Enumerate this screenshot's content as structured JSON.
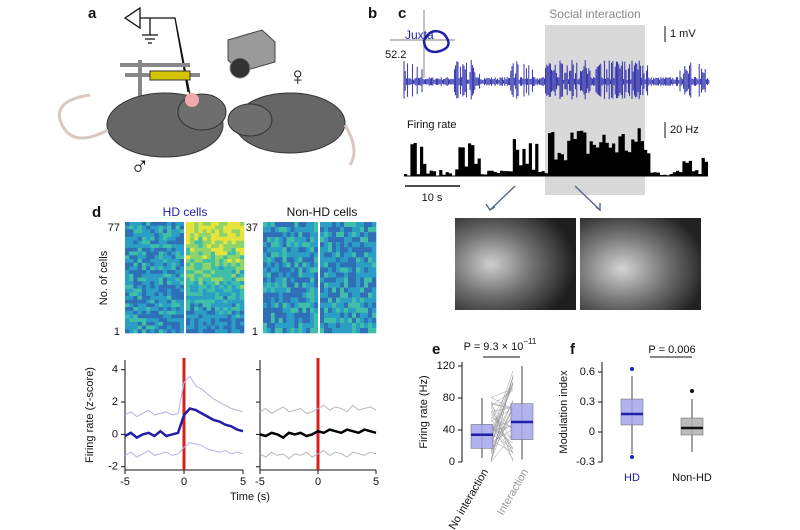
{
  "panel_a": {
    "label": "a",
    "male": "♂",
    "female": "♀"
  },
  "panel_b": {
    "label": "b",
    "angle": "52.2"
  },
  "panel_c": {
    "label": "c",
    "trace_label": "Juxta",
    "shaded_label": "Social interaction",
    "voltage_scale": "1 mV",
    "rate_label": "Firing rate",
    "rate_scale": "20 Hz",
    "time_scale": "10 s"
  },
  "panel_d": {
    "label": "d",
    "hd_title": "HD cells",
    "nonhd_title": "Non-HD cells",
    "hd_max": "77",
    "hd_min": "1",
    "nonhd_max": "37",
    "nonhd_min": "1",
    "heatmap_ylabel": "No. of cells",
    "x_label": "Time (s)"
  },
  "panel_e": {
    "label": "e",
    "p_prefix": "P = 9.3 × 10",
    "p_exponent": "−11"
  },
  "panel_f": {
    "label": "f",
    "p_value": "P = 0.006"
  },
  "chart_data": [
    {
      "type": "line",
      "y_label": "Firing rate (z-score)",
      "x": [
        -5,
        -4.5,
        -4,
        -3.5,
        -3,
        -2.5,
        -2,
        -1.5,
        -1,
        -0.5,
        0,
        0.5,
        1,
        1.5,
        2,
        2.5,
        3,
        3.5,
        4,
        4.5,
        5
      ],
      "xlim": [
        -5,
        5
      ],
      "xticks": [
        -5,
        0,
        5
      ],
      "ylim": [
        -2.2,
        4.6
      ],
      "yticks": [
        -2,
        0,
        2,
        4
      ],
      "marker_color": "#d62020",
      "series": [
        {
          "color": "#b3b3e6",
          "values": [
            1.2,
            1.4,
            1.1,
            1.3,
            1.5,
            1.2,
            1.3,
            1.4,
            1.2,
            1.3,
            3.2,
            3.6,
            3.0,
            2.8,
            2.5,
            2.2,
            2.0,
            1.8,
            1.6,
            1.5,
            1.4
          ]
        },
        {
          "color": "#b3b3e6",
          "values": [
            -1.3,
            -1.1,
            -1.4,
            -1.2,
            -1.0,
            -1.3,
            -1.2,
            -1.1,
            -1.3,
            -1.2,
            -0.8,
            -0.5,
            -0.6,
            -0.7,
            -0.9,
            -1.0,
            -1.1,
            -1.0,
            -1.2,
            -1.1,
            -1.2
          ]
        },
        {
          "color": "#1f1fa8",
          "values": [
            -0.1,
            0.1,
            -0.2,
            0,
            0.1,
            -0.1,
            0.2,
            -0.1,
            0,
            0.1,
            1.2,
            1.6,
            1.5,
            1.3,
            1.1,
            0.9,
            0.8,
            0.6,
            0.5,
            0.3,
            0.2
          ]
        }
      ]
    },
    {
      "type": "line",
      "x": [
        -5,
        -4.5,
        -4,
        -3.5,
        -3,
        -2.5,
        -2,
        -1.5,
        -1,
        -0.5,
        0,
        0.5,
        1,
        1.5,
        2,
        2.5,
        3,
        3.5,
        4,
        4.5,
        5
      ],
      "xlim": [
        -5,
        5
      ],
      "xticks": [
        -5,
        0,
        5
      ],
      "ylim": [
        -2.2,
        4.6
      ],
      "yticks": [
        -2,
        0,
        2,
        4
      ],
      "marker_color": "#d62020",
      "series": [
        {
          "color": "#b8b8b8",
          "values": [
            1.4,
            1.6,
            1.3,
            1.5,
            1.7,
            1.4,
            1.5,
            1.6,
            1.3,
            1.4,
            1.6,
            1.8,
            1.5,
            1.7,
            1.6,
            1.4,
            1.8,
            1.5,
            1.6,
            1.7,
            1.5
          ]
        },
        {
          "color": "#b8b8b8",
          "values": [
            -1.2,
            -1.4,
            -1.1,
            -1.3,
            -1.2,
            -1.5,
            -1.2,
            -1.3,
            -1.1,
            -1.4,
            -1.2,
            -1.0,
            -1.3,
            -1.1,
            -1.2,
            -1.4,
            -1.1,
            -1.2,
            -1.3,
            -1.1,
            -1.2
          ]
        },
        {
          "color": "#000000",
          "values": [
            0,
            -0.1,
            0.1,
            0,
            -0.2,
            0.1,
            0,
            0.1,
            -0.1,
            0,
            0.2,
            0.1,
            0.3,
            0.2,
            0.1,
            0.3,
            0.2,
            0.1,
            0.3,
            0.2,
            0.1
          ]
        }
      ]
    },
    {
      "type": "box",
      "y_label": "Firing rate (Hz)",
      "categories": [
        "No interaction",
        "Interaction"
      ],
      "category_colors": [
        "#111111",
        "#999999"
      ],
      "ylim": [
        0,
        125
      ],
      "yticks": [
        0,
        40,
        80,
        120
      ],
      "boxes": [
        {
          "min": 5,
          "q1": 17,
          "median": 34,
          "q3": 47,
          "max": 80,
          "color": "#a5a5ec",
          "median_color": "#1f1fa8"
        },
        {
          "min": 3,
          "q1": 28,
          "median": 50,
          "q3": 73,
          "max": 120,
          "color": "#a5a5ec",
          "median_color": "#1f1fa8"
        }
      ]
    },
    {
      "type": "box",
      "y_label": "Modulation index",
      "categories": [
        "HD",
        "Non-HD"
      ],
      "category_colors": [
        "#1f1fa8",
        "#111111"
      ],
      "ylim": [
        -0.3,
        0.7
      ],
      "yticks": [
        -0.3,
        0,
        0.3,
        0.6
      ],
      "boxes": [
        {
          "min": -0.22,
          "q1": 0.07,
          "median": 0.18,
          "q3": 0.33,
          "max": 0.56,
          "outliers": [
            0.63,
            -0.25
          ],
          "color": "#a5a5ec",
          "median_color": "#1f1fa8"
        },
        {
          "min": -0.2,
          "q1": -0.03,
          "median": 0.04,
          "q3": 0.14,
          "max": 0.33,
          "outliers": [
            0.41
          ],
          "color": "#b0b0b0",
          "median_color": "#111111"
        }
      ]
    }
  ]
}
